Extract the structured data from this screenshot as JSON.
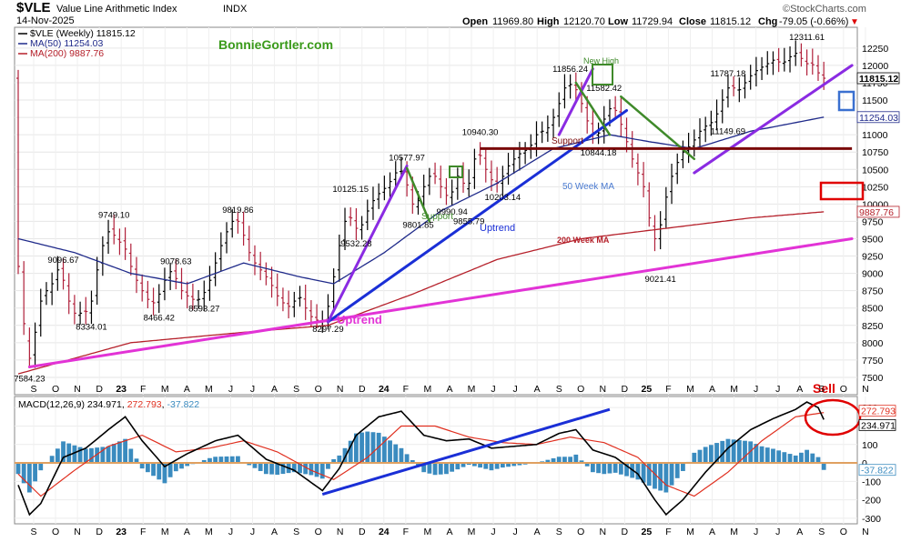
{
  "header": {
    "symbol": "$VLE",
    "name": "Value Line Arithmetic Index",
    "exchange": "INDX",
    "date": "14-Nov-2025",
    "open_label": "Open",
    "open": "11969.80",
    "high_label": "High",
    "high": "12120.70",
    "low_label": "Low",
    "low": "11729.94",
    "close_label": "Close",
    "close": "11815.12",
    "chg_label": "Chg",
    "chg": "-79.05 (-0.66%)",
    "chg_marker": "▼",
    "brand": "©StockCharts.com",
    "watermark": "BonnieGortler.com"
  },
  "legend": {
    "price": "$VLE (Weekly) 11815.12",
    "ma50": "MA(50) 11254.03",
    "ma200": "MA(200) 9887.76"
  },
  "colors": {
    "price": "#000000",
    "ma50": "#1f2a8a",
    "ma200": "#b5202a",
    "uptrend_magenta": "#e233d6",
    "uptrend_blue": "#1a2fd6",
    "purple": "#8a2be2",
    "green": "#3f8a2a",
    "support": "#7a0a0a",
    "macd": "#000000",
    "signal": "#e03020",
    "hist": "#3a8bbf",
    "zero": "#e0a060",
    "sell": "#e00000",
    "box_blue": "#3a70d0"
  },
  "annotations": {
    "support_top": "Support",
    "support_low": "Support",
    "uptrend_blue": "Uptrend",
    "uptrend_magenta": "Uptrend",
    "ma50_label": "50 Week MA",
    "ma200_label": "200 Week MA",
    "new_high": "New High",
    "sell": "Sell"
  },
  "price_labels": [
    {
      "t": 2,
      "v": 7584.23,
      "text": "7584.23"
    },
    {
      "t": 13,
      "v": 8334.01,
      "text": "8334.01"
    },
    {
      "t": 8,
      "v": 9096.67,
      "text": "9096.67"
    },
    {
      "t": 17,
      "v": 9749.1,
      "text": "9749.10"
    },
    {
      "t": 25,
      "v": 8466.42,
      "text": "8466.42"
    },
    {
      "t": 28,
      "v": 9078.63,
      "text": "9078.63"
    },
    {
      "t": 33,
      "v": 8593.27,
      "text": "8593.27"
    },
    {
      "t": 39,
      "v": 9819.86,
      "text": "9819.86"
    },
    {
      "t": 55,
      "v": 8297.29,
      "text": "8297.29"
    },
    {
      "t": 59,
      "v": 10125.15,
      "text": "10125.15"
    },
    {
      "t": 60,
      "v": 9532.28,
      "text": "9532.28"
    },
    {
      "t": 69,
      "v": 10577.97,
      "text": "10577.97"
    },
    {
      "t": 71,
      "v": 9801.85,
      "text": "9801.85"
    },
    {
      "t": 77,
      "v": 9990.94,
      "text": "9990.94"
    },
    {
      "t": 82,
      "v": 10940.3,
      "text": "10940.30"
    },
    {
      "t": 86,
      "v": 10203.14,
      "text": "10203.14"
    },
    {
      "t": 80,
      "v": 9855.79,
      "text": "9855.79"
    },
    {
      "t": 98,
      "v": 11856.24,
      "text": "11856.24"
    },
    {
      "t": 103,
      "v": 10844.18,
      "text": "10844.18"
    },
    {
      "t": 104,
      "v": 11582.42,
      "text": "11582.42"
    },
    {
      "t": 114,
      "v": 9021.41,
      "text": "9021.41"
    },
    {
      "t": 126,
      "v": 11149.69,
      "text": "11149.69"
    },
    {
      "t": 126,
      "v": 11787.18,
      "text": "11787.18"
    },
    {
      "t": 140,
      "v": 12311.61,
      "text": "12311.61"
    }
  ],
  "axis": {
    "price_ticks": [
      "7500",
      "7750",
      "8000",
      "8250",
      "8500",
      "8750",
      "9000",
      "9250",
      "9500",
      "9750",
      "10000",
      "10250",
      "10500",
      "10750",
      "11000",
      "11250",
      "11500",
      "11750",
      "12000",
      "12250"
    ],
    "macd_ticks": [
      "-300",
      "-200",
      "-100",
      "0",
      "100",
      "200",
      "300"
    ],
    "months": [
      "S",
      "O",
      "N",
      "D",
      "23",
      "F",
      "M",
      "A",
      "M",
      "J",
      "J",
      "A",
      "S",
      "O",
      "N",
      "D",
      "24",
      "F",
      "M",
      "A",
      "M",
      "J",
      "J",
      "A",
      "S",
      "O",
      "N",
      "D",
      "25",
      "F",
      "M",
      "A",
      "M",
      "J",
      "J",
      "A",
      "S",
      "O",
      "N"
    ],
    "price_tags": [
      {
        "text": "11815.12",
        "v": 11815.12
      },
      {
        "text": "11254.03",
        "v": 11254.03
      },
      {
        "text": "9887.76",
        "v": 9887.76
      }
    ],
    "macd_tags": [
      {
        "text": "272.793",
        "v": 272.793
      },
      {
        "text": "234.971",
        "v": 234.971
      },
      {
        "text": "-37.822",
        "v": -37.822
      }
    ]
  },
  "macd_legend": {
    "label": "MACD(12,26,9)",
    "macd": "234.971",
    "signal": "272.793",
    "hist": "-37.822"
  },
  "chart_data": {
    "type": "line",
    "x_unit": "weeks from Sep 2022",
    "price_anchors": [
      [
        0,
        9300
      ],
      [
        1,
        8900
      ],
      [
        2,
        7650
      ],
      [
        3,
        7900
      ],
      [
        4,
        8400
      ],
      [
        5,
        8800
      ],
      [
        6,
        8700
      ],
      [
        7,
        9000
      ],
      [
        8,
        9100
      ],
      [
        9,
        8700
      ],
      [
        10,
        8500
      ],
      [
        11,
        8350
      ],
      [
        12,
        8500
      ],
      [
        13,
        8400
      ],
      [
        14,
        8800
      ],
      [
        15,
        9300
      ],
      [
        16,
        9500
      ],
      [
        17,
        9700
      ],
      [
        18,
        9400
      ],
      [
        19,
        9500
      ],
      [
        20,
        9200
      ],
      [
        21,
        9000
      ],
      [
        22,
        8800
      ],
      [
        23,
        8700
      ],
      [
        24,
        8550
      ],
      [
        25,
        8600
      ],
      [
        26,
        8800
      ],
      [
        27,
        9000
      ],
      [
        28,
        9050
      ],
      [
        29,
        8800
      ],
      [
        30,
        8700
      ],
      [
        31,
        8650
      ],
      [
        32,
        8600
      ],
      [
        33,
        8650
      ],
      [
        34,
        8800
      ],
      [
        35,
        9000
      ],
      [
        36,
        9300
      ],
      [
        37,
        9500
      ],
      [
        38,
        9700
      ],
      [
        39,
        9800
      ],
      [
        40,
        9700
      ],
      [
        41,
        9400
      ],
      [
        42,
        9200
      ],
      [
        43,
        9100
      ],
      [
        44,
        9000
      ],
      [
        45,
        8900
      ],
      [
        46,
        8750
      ],
      [
        47,
        8600
      ],
      [
        48,
        8550
      ],
      [
        49,
        8500
      ],
      [
        50,
        8700
      ],
      [
        51,
        8600
      ],
      [
        52,
        8400
      ],
      [
        53,
        8350
      ],
      [
        54,
        8300
      ],
      [
        55,
        8350
      ],
      [
        56,
        8700
      ],
      [
        57,
        9200
      ],
      [
        58,
        9600
      ],
      [
        59,
        9900
      ],
      [
        60,
        9700
      ],
      [
        61,
        9600
      ],
      [
        62,
        9800
      ],
      [
        63,
        10000
      ],
      [
        64,
        10100
      ],
      [
        65,
        10200
      ],
      [
        66,
        10250
      ],
      [
        67,
        10400
      ],
      [
        68,
        10500
      ],
      [
        69,
        10450
      ],
      [
        70,
        10100
      ],
      [
        71,
        9900
      ],
      [
        72,
        10200
      ],
      [
        73,
        10300
      ],
      [
        74,
        10500
      ],
      [
        75,
        10300
      ],
      [
        76,
        10200
      ],
      [
        77,
        10050
      ],
      [
        78,
        10300
      ],
      [
        79,
        10500
      ],
      [
        80,
        10100
      ],
      [
        81,
        10500
      ],
      [
        82,
        10800
      ],
      [
        83,
        10600
      ],
      [
        84,
        10400
      ],
      [
        85,
        10300
      ],
      [
        86,
        10300
      ],
      [
        87,
        10500
      ],
      [
        88,
        10600
      ],
      [
        89,
        10700
      ],
      [
        90,
        10750
      ],
      [
        91,
        10800
      ],
      [
        92,
        10900
      ],
      [
        93,
        11100
      ],
      [
        94,
        11000
      ],
      [
        95,
        11200
      ],
      [
        96,
        11300
      ],
      [
        97,
        11600
      ],
      [
        98,
        11750
      ],
      [
        99,
        11700
      ],
      [
        100,
        11600
      ],
      [
        101,
        11300
      ],
      [
        102,
        11100
      ],
      [
        103,
        10950
      ],
      [
        104,
        11100
      ],
      [
        105,
        11350
      ],
      [
        106,
        11400
      ],
      [
        107,
        11300
      ],
      [
        108,
        11000
      ],
      [
        109,
        10800
      ],
      [
        110,
        10500
      ],
      [
        111,
        10400
      ],
      [
        112,
        10100
      ],
      [
        113,
        9500
      ],
      [
        114,
        9500
      ],
      [
        115,
        9900
      ],
      [
        116,
        10300
      ],
      [
        117,
        10500
      ],
      [
        118,
        10700
      ],
      [
        119,
        10800
      ],
      [
        120,
        10850
      ],
      [
        121,
        11000
      ],
      [
        122,
        11100
      ],
      [
        123,
        11150
      ],
      [
        124,
        11200
      ],
      [
        125,
        11400
      ],
      [
        126,
        11600
      ],
      [
        127,
        11750
      ],
      [
        128,
        11600
      ],
      [
        129,
        11700
      ],
      [
        130,
        11800
      ],
      [
        131,
        11900
      ],
      [
        132,
        11950
      ],
      [
        133,
        12000
      ],
      [
        134,
        12050
      ],
      [
        135,
        12100
      ],
      [
        136,
        12000
      ],
      [
        137,
        12100
      ],
      [
        138,
        12150
      ],
      [
        139,
        12200
      ],
      [
        140,
        12000
      ],
      [
        141,
        12050
      ],
      [
        142,
        11970
      ],
      [
        143,
        11815
      ]
    ],
    "ma50_anchors": [
      [
        0,
        9500
      ],
      [
        10,
        9300
      ],
      [
        20,
        9000
      ],
      [
        30,
        8850
      ],
      [
        40,
        9150
      ],
      [
        50,
        8950
      ],
      [
        56,
        8850
      ],
      [
        65,
        9300
      ],
      [
        75,
        9900
      ],
      [
        85,
        10300
      ],
      [
        95,
        10800
      ],
      [
        105,
        11000
      ],
      [
        112,
        10900
      ],
      [
        120,
        10800
      ],
      [
        130,
        11050
      ],
      [
        143,
        11254
      ]
    ],
    "ma200_anchors": [
      [
        0,
        7550
      ],
      [
        20,
        8000
      ],
      [
        40,
        8150
      ],
      [
        55,
        8250
      ],
      [
        70,
        8700
      ],
      [
        85,
        9200
      ],
      [
        100,
        9500
      ],
      [
        115,
        9650
      ],
      [
        130,
        9800
      ],
      [
        143,
        9888
      ]
    ],
    "macd_anchors": [
      [
        0,
        -120
      ],
      [
        2,
        -280
      ],
      [
        4,
        -220
      ],
      [
        8,
        30
      ],
      [
        12,
        80
      ],
      [
        16,
        180
      ],
      [
        19,
        250
      ],
      [
        22,
        120
      ],
      [
        26,
        -20
      ],
      [
        30,
        50
      ],
      [
        35,
        120
      ],
      [
        39,
        150
      ],
      [
        44,
        20
      ],
      [
        49,
        -40
      ],
      [
        54,
        -150
      ],
      [
        57,
        -30
      ],
      [
        60,
        150
      ],
      [
        64,
        250
      ],
      [
        68,
        280
      ],
      [
        72,
        150
      ],
      [
        76,
        120
      ],
      [
        80,
        130
      ],
      [
        84,
        80
      ],
      [
        88,
        90
      ],
      [
        92,
        100
      ],
      [
        96,
        160
      ],
      [
        99,
        180
      ],
      [
        102,
        70
      ],
      [
        106,
        30
      ],
      [
        110,
        -60
      ],
      [
        113,
        -200
      ],
      [
        115,
        -280
      ],
      [
        118,
        -200
      ],
      [
        122,
        -50
      ],
      [
        126,
        80
      ],
      [
        130,
        180
      ],
      [
        134,
        240
      ],
      [
        138,
        290
      ],
      [
        140,
        330
      ],
      [
        142,
        300
      ],
      [
        143,
        235
      ]
    ],
    "signal_anchors": [
      [
        0,
        -60
      ],
      [
        4,
        -180
      ],
      [
        10,
        -40
      ],
      [
        16,
        90
      ],
      [
        22,
        150
      ],
      [
        28,
        60
      ],
      [
        34,
        80
      ],
      [
        40,
        120
      ],
      [
        46,
        60
      ],
      [
        52,
        -40
      ],
      [
        56,
        -90
      ],
      [
        62,
        30
      ],
      [
        68,
        200
      ],
      [
        74,
        200
      ],
      [
        80,
        140
      ],
      [
        86,
        110
      ],
      [
        92,
        100
      ],
      [
        98,
        140
      ],
      [
        104,
        110
      ],
      [
        110,
        30
      ],
      [
        115,
        -120
      ],
      [
        120,
        -180
      ],
      [
        126,
        -50
      ],
      [
        132,
        120
      ],
      [
        138,
        250
      ],
      [
        143,
        273
      ]
    ],
    "trendlines": [
      {
        "id": "magenta-uptrend",
        "color": "uptrend_magenta",
        "from": [
          2,
          7650
        ],
        "to": [
          148,
          9500
        ],
        "width": 3
      },
      {
        "id": "blue-uptrend",
        "color": "uptrend_blue",
        "from": [
          55,
          8300
        ],
        "to": [
          108,
          11350
        ],
        "width": 3
      },
      {
        "id": "purple-1",
        "color": "purple",
        "from": [
          55,
          8300
        ],
        "to": [
          69,
          10550
        ],
        "width": 3
      },
      {
        "id": "purple-2",
        "color": "purple",
        "from": [
          96,
          11000
        ],
        "to": [
          102,
          11950
        ],
        "width": 3
      },
      {
        "id": "purple-3",
        "color": "purple",
        "from": [
          120,
          10450
        ],
        "to": [
          148,
          12000
        ],
        "width": 3
      },
      {
        "id": "green-1",
        "color": "green",
        "from": [
          69,
          10520
        ],
        "to": [
          73,
          9750
        ],
        "width": 2.5
      },
      {
        "id": "green-2",
        "color": "green",
        "from": [
          99,
          11750
        ],
        "to": [
          105,
          11000
        ],
        "width": 2.5
      },
      {
        "id": "green-3",
        "color": "green",
        "from": [
          107,
          11550
        ],
        "to": [
          120,
          10650
        ],
        "width": 2.5
      }
    ],
    "support_line": {
      "from": 82,
      "to": 148,
      "v": 10800
    },
    "macd_trendlines": [
      {
        "color": "uptrend_blue",
        "from": [
          54,
          -170
        ],
        "to": [
          105,
          290
        ]
      }
    ]
  }
}
